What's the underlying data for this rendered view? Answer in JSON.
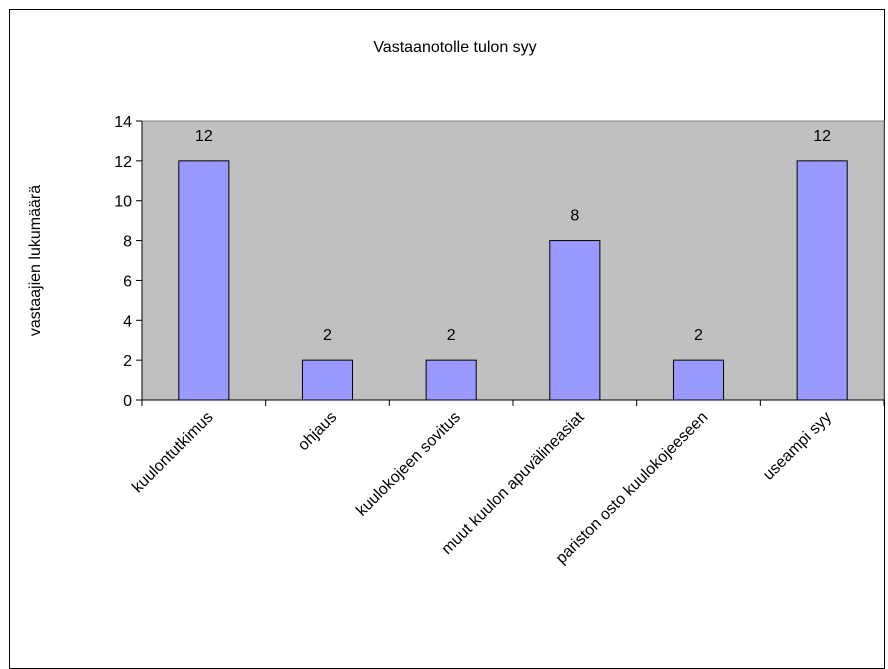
{
  "chart_data": {
    "type": "bar",
    "title": "Vastaanotolle tulon syy",
    "xlabel": "",
    "ylabel": "vastaajien lukumäärä",
    "categories": [
      "kuulontutkimus",
      "ohjaus",
      "kuulokojeen sovitus",
      "muut kuulon apuvälineasiat",
      "pariston osto kuulokojeeseen",
      "useampi syy"
    ],
    "values": [
      12,
      2,
      2,
      8,
      2,
      12
    ],
    "ylim": [
      0,
      14
    ],
    "yticks": [
      0,
      2,
      4,
      6,
      8,
      10,
      12,
      14
    ],
    "grid": false,
    "legend": "none",
    "colors": {
      "bar": "#9999ff",
      "plot_background": "#c0c0c0",
      "bar_border": "#000000"
    }
  }
}
